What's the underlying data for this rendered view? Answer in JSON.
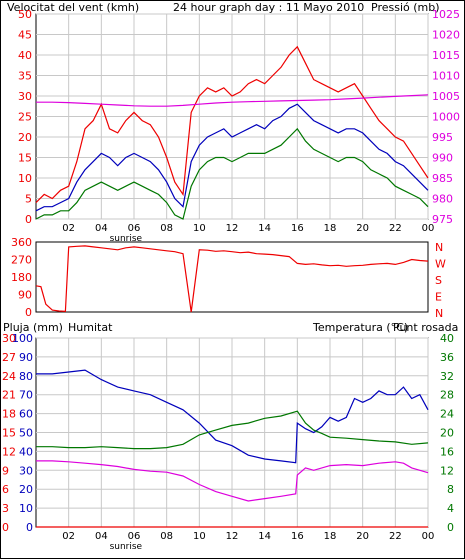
{
  "colors": {
    "red": "#ee0000",
    "magenta": "#dd00dd",
    "blue": "#0000bb",
    "green": "#007700",
    "grid": "#c8c8c8"
  },
  "chart_data": [
    {
      "type": "line",
      "title": "24 hour graph day : 11 Mayo 2010",
      "left_axis_label": "Velocitat del vent (kmh)",
      "right_axis_label": "Pressió (mb)",
      "x_ticks": [
        "02",
        "04",
        "06",
        "08",
        "10",
        "12",
        "14",
        "16",
        "18",
        "20",
        "22",
        "00"
      ],
      "x_annotation": "sunrise",
      "ylim": [
        0,
        50
      ],
      "y_ticks": [
        0,
        5,
        10,
        15,
        20,
        25,
        30,
        35,
        40,
        45,
        50
      ],
      "y2lim": [
        975,
        1025
      ],
      "y2_ticks": [
        975,
        980,
        985,
        990,
        995,
        1000,
        1005,
        1010,
        1015,
        1020,
        1025
      ],
      "grid": true,
      "series": [
        {
          "axis": "left",
          "color": "red",
          "x": [
            0,
            0.5,
            1,
            1.5,
            2,
            2.5,
            3,
            3.5,
            4,
            4.5,
            5,
            5.5,
            6,
            6.5,
            7,
            7.5,
            8,
            8.5,
            9,
            9.5,
            10,
            10.5,
            11,
            11.5,
            12,
            12.5,
            13,
            13.5,
            14,
            14.5,
            15,
            15.5,
            16,
            16.5,
            17,
            17.5,
            18,
            18.5,
            19,
            19.5,
            20,
            20.5,
            21,
            21.5,
            22,
            22.5,
            23,
            23.5,
            24
          ],
          "values": [
            4,
            6,
            5,
            7,
            8,
            14,
            22,
            24,
            28,
            22,
            21,
            24,
            26,
            24,
            23,
            20,
            15,
            9,
            6,
            26,
            30,
            32,
            31,
            32,
            30,
            31,
            33,
            34,
            33,
            35,
            37,
            40,
            42,
            38,
            34,
            33,
            32,
            31,
            32,
            33,
            30,
            27,
            24,
            22,
            20,
            19,
            16,
            13,
            10
          ]
        },
        {
          "axis": "left",
          "color": "blue",
          "x": [
            0,
            0.5,
            1,
            1.5,
            2,
            2.5,
            3,
            3.5,
            4,
            4.5,
            5,
            5.5,
            6,
            6.5,
            7,
            7.5,
            8,
            8.5,
            9,
            9.5,
            10,
            10.5,
            11,
            11.5,
            12,
            12.5,
            13,
            13.5,
            14,
            14.5,
            15,
            15.5,
            16,
            16.5,
            17,
            17.5,
            18,
            18.5,
            19,
            19.5,
            20,
            20.5,
            21,
            21.5,
            22,
            22.5,
            23,
            23.5,
            24
          ],
          "values": [
            2,
            3,
            3,
            4,
            5,
            9,
            12,
            14,
            16,
            15,
            13,
            15,
            16,
            15,
            14,
            12,
            9,
            5,
            3,
            14,
            18,
            20,
            21,
            22,
            20,
            21,
            22,
            23,
            22,
            24,
            25,
            27,
            28,
            26,
            24,
            23,
            22,
            21,
            22,
            22,
            21,
            19,
            17,
            16,
            14,
            13,
            11,
            9,
            7
          ]
        },
        {
          "axis": "left",
          "color": "green",
          "x": [
            0,
            0.5,
            1,
            1.5,
            2,
            2.5,
            3,
            3.5,
            4,
            4.5,
            5,
            5.5,
            6,
            6.5,
            7,
            7.5,
            8,
            8.5,
            9,
            9.5,
            10,
            10.5,
            11,
            11.5,
            12,
            12.5,
            13,
            13.5,
            14,
            14.5,
            15,
            15.5,
            16,
            16.5,
            17,
            17.5,
            18,
            18.5,
            19,
            19.5,
            20,
            20.5,
            21,
            21.5,
            22,
            22.5,
            23,
            23.5,
            24
          ],
          "values": [
            0,
            1,
            1,
            2,
            2,
            4,
            7,
            8,
            9,
            8,
            7,
            8,
            9,
            8,
            7,
            6,
            4,
            1,
            0,
            8,
            12,
            14,
            15,
            15,
            14,
            15,
            16,
            16,
            16,
            17,
            18,
            20,
            22,
            19,
            17,
            16,
            15,
            14,
            15,
            15,
            14,
            12,
            11,
            10,
            8,
            7,
            6,
            5,
            3
          ]
        },
        {
          "axis": "right",
          "color": "magenta",
          "x": [
            0,
            1,
            2,
            3,
            4,
            5,
            6,
            7,
            8,
            9,
            10,
            11,
            12,
            13,
            14,
            15,
            16,
            17,
            18,
            19,
            20,
            21,
            22,
            23,
            24
          ],
          "values": [
            1003.5,
            1003.5,
            1003.4,
            1003.2,
            1003,
            1002.8,
            1002.6,
            1002.5,
            1002.5,
            1002.7,
            1003,
            1003.3,
            1003.5,
            1003.6,
            1003.7,
            1003.8,
            1003.9,
            1004,
            1004.1,
            1004.3,
            1004.5,
            1004.7,
            1004.9,
            1005.1,
            1005.3
          ]
        }
      ]
    },
    {
      "type": "line",
      "y_ticks": [
        0,
        90,
        180,
        270,
        360
      ],
      "ylim": [
        0,
        360
      ],
      "compass_labels": [
        "N",
        "W",
        "S",
        "E",
        "N"
      ],
      "series": [
        {
          "color": "red",
          "x": [
            0,
            0.3,
            0.6,
            1,
            1.4,
            1.8,
            2,
            2.5,
            3,
            3.5,
            4,
            4.5,
            5,
            5.5,
            6,
            6.5,
            7,
            7.5,
            8,
            8.5,
            9,
            9.5,
            10,
            10.5,
            11,
            11.5,
            12,
            12.5,
            13,
            13.5,
            14,
            14.5,
            15,
            15.5,
            16,
            16.5,
            17,
            17.5,
            18,
            18.5,
            19,
            19.5,
            20,
            20.5,
            21,
            21.5,
            22,
            22.5,
            23,
            23.5,
            24
          ],
          "values": [
            135,
            130,
            40,
            10,
            5,
            3,
            335,
            338,
            340,
            335,
            330,
            325,
            320,
            330,
            335,
            330,
            325,
            320,
            315,
            310,
            300,
            0,
            320,
            318,
            312,
            315,
            310,
            305,
            308,
            300,
            298,
            295,
            290,
            285,
            250,
            245,
            248,
            242,
            238,
            240,
            235,
            238,
            240,
            245,
            248,
            250,
            245,
            255,
            270,
            265,
            262
          ]
        }
      ]
    },
    {
      "type": "line",
      "left_axis_label": "Pluja (mm)",
      "second_left_label": "Humitat",
      "right_axis_label": "Temperatura (°C)",
      "right_axis_label2": "Punt rosada",
      "x_ticks": [
        "02",
        "04",
        "06",
        "08",
        "10",
        "12",
        "14",
        "16",
        "18",
        "20",
        "22",
        "00"
      ],
      "x_annotation": "sunrise",
      "rain_ticks": [
        0,
        3,
        6,
        9,
        12,
        15,
        18,
        21,
        24,
        27,
        30
      ],
      "rain_lim": [
        0,
        30
      ],
      "humidity_ticks": [
        0,
        10,
        20,
        30,
        40,
        50,
        60,
        70,
        80,
        90,
        100
      ],
      "humidity_lim": [
        0,
        100
      ],
      "temp_ticks": [
        0,
        4,
        8,
        12,
        16,
        20,
        24,
        28,
        32,
        36,
        40
      ],
      "temp_lim": [
        0,
        40
      ],
      "grid": true,
      "series": [
        {
          "name": "Humitat",
          "axis": "humidity",
          "color": "blue",
          "x": [
            0,
            1,
            2,
            3,
            4,
            5,
            6,
            7,
            8,
            9,
            10,
            11,
            12,
            13,
            14,
            15,
            15.9,
            16,
            16.5,
            17,
            17.5,
            18,
            18.5,
            19,
            19.5,
            20,
            20.5,
            21,
            21.5,
            22,
            22.5,
            23,
            23.5,
            24
          ],
          "values": [
            81,
            81,
            82,
            83,
            78,
            74,
            72,
            70,
            66,
            62,
            55,
            46,
            43,
            38,
            36,
            35,
            34,
            55,
            52,
            50,
            53,
            58,
            56,
            58,
            68,
            66,
            68,
            72,
            70,
            70,
            74,
            68,
            70,
            62
          ]
        },
        {
          "name": "Temperatura",
          "axis": "temp",
          "color": "green",
          "x": [
            0,
            1,
            2,
            3,
            4,
            5,
            6,
            7,
            8,
            9,
            10,
            11,
            12,
            13,
            14,
            15,
            16,
            16.5,
            17,
            17.5,
            18,
            19,
            20,
            21,
            22,
            23,
            24
          ],
          "values": [
            17,
            17,
            16.8,
            16.8,
            17,
            16.8,
            16.6,
            16.6,
            16.8,
            17.5,
            19.5,
            20.5,
            21.5,
            22,
            23,
            23.5,
            24.5,
            22,
            20.5,
            19.8,
            19,
            18.8,
            18.5,
            18.2,
            18,
            17.5,
            17.8
          ]
        },
        {
          "name": "Punt rosada",
          "axis": "temp",
          "color": "magenta",
          "x": [
            0,
            1,
            2,
            3,
            4,
            5,
            6,
            7,
            8,
            9,
            10,
            11,
            12,
            13,
            14,
            15,
            15.9,
            16,
            16.5,
            17,
            18,
            19,
            20,
            21,
            22,
            22.5,
            23,
            24
          ],
          "values": [
            14,
            14,
            13.8,
            13.5,
            13.2,
            12.8,
            12.2,
            11.8,
            11.6,
            10.8,
            9,
            7.5,
            6.5,
            5.5,
            6,
            6.5,
            7,
            11,
            12.5,
            12,
            13,
            13.2,
            13,
            13.5,
            13.8,
            13.5,
            12.5,
            11.5
          ]
        },
        {
          "name": "Pluja",
          "axis": "rain",
          "color": "red",
          "x": [
            0,
            24
          ],
          "values": [
            0,
            0
          ]
        }
      ]
    }
  ]
}
